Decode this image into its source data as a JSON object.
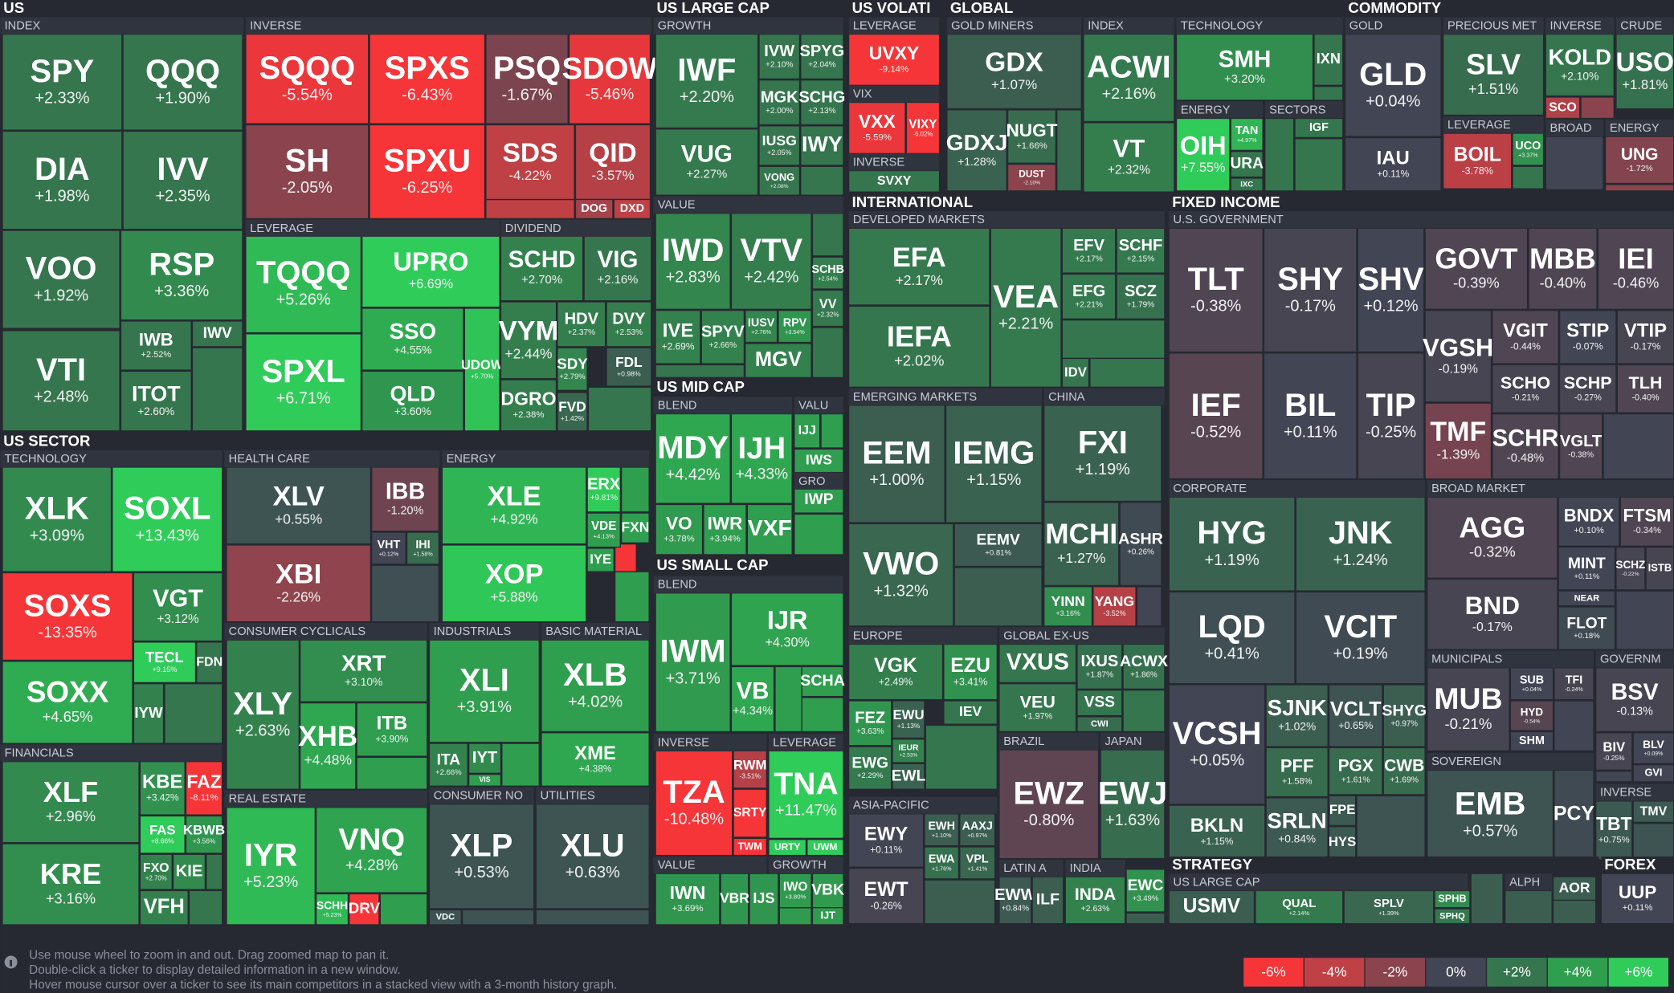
{
  "sections": [
    "US",
    "US LARGE CAP",
    "US VOLATI",
    "GLOBAL",
    "COMMODITY",
    "US SECTOR",
    "US MID CAP",
    "US SMALL CAP",
    "INTERNATIONAL",
    "FIXED INCOME",
    "STRATEGY",
    "FOREX"
  ],
  "groups": [
    "INDEX",
    "INVERSE",
    "LEVERAGE",
    "DIVIDEND",
    "GROWTH",
    "VALUE",
    "BLEND",
    "VALU",
    "GRO",
    "BLEND",
    "INVERSE",
    "LEVERAGE",
    "VALUE",
    "GROWTH",
    "LEVERAGE",
    "VIX",
    "INVERSE",
    "GOLD MINERS",
    "INDEX",
    "TECHNOLOGY",
    "ENERGY",
    "SECTORS",
    "GOLD",
    "PRECIOUS MET",
    "LEVERAGE",
    "INVERSE",
    "BROAD",
    "CRUDE",
    "ENERGY",
    "DEVELOPED MARKETS",
    "EMERGING MARKETS",
    "CHINA",
    "EUROPE",
    "GLOBAL EX-US",
    "BRAZIL",
    "JAPAN",
    "ASIA-PACIFIC",
    "LATIN A",
    "INDIA",
    "U.S. GOVERNMENT",
    "CORPORATE",
    "BROAD MARKET",
    "MUNICIPALS",
    "GOVERNM",
    "SOVEREIGN",
    "INVERSE",
    "US LARGE CAP",
    "ALPH",
    "TECHNOLOGY",
    "FINANCIALS",
    "HEALTH CARE",
    "ENERGY",
    "CONSUMER CYCLICALS",
    "REAL ESTATE",
    "INDUSTRIALS",
    "BASIC MATERIAL",
    "CONSUMER NO",
    "UTILITIES"
  ],
  "tiles": [
    {
      "ticker": "SPY",
      "change": "+2.33%"
    },
    {
      "ticker": "QQQ",
      "change": "+1.90%"
    },
    {
      "ticker": "DIA",
      "change": "+1.98%"
    },
    {
      "ticker": "IVV",
      "change": "+2.35%"
    },
    {
      "ticker": "VOO",
      "change": "+1.92%"
    },
    {
      "ticker": "RSP",
      "change": "+3.36%"
    },
    {
      "ticker": "VTI",
      "change": "+2.48%"
    },
    {
      "ticker": "IWB",
      "change": "+2.52%"
    },
    {
      "ticker": "IWV"
    },
    {
      "ticker": "ITOT",
      "change": "+2.60%"
    },
    {
      "ticker": "SQQQ",
      "change": "-5.54%"
    },
    {
      "ticker": "SPXS",
      "change": "-6.43%"
    },
    {
      "ticker": "PSQ",
      "change": "-1.67%"
    },
    {
      "ticker": "SDOW",
      "change": "-5.46%"
    },
    {
      "ticker": "SH",
      "change": "-2.05%"
    },
    {
      "ticker": "SPXU",
      "change": "-6.25%"
    },
    {
      "ticker": "SDS",
      "change": "-4.22%"
    },
    {
      "ticker": "QID",
      "change": "-3.57%"
    },
    {
      "ticker": "DOG"
    },
    {
      "ticker": "DXD"
    },
    {
      "ticker": "TQQQ",
      "change": "+5.26%"
    },
    {
      "ticker": "UPRO",
      "change": "+6.69%"
    },
    {
      "ticker": "SPXL",
      "change": "+6.71%"
    },
    {
      "ticker": "SSO",
      "change": "+4.55%"
    },
    {
      "ticker": "QLD",
      "change": "+3.60%"
    },
    {
      "ticker": "UDOW",
      "change": "+5.70%"
    },
    {
      "ticker": "SCHD",
      "change": "+2.70%"
    },
    {
      "ticker": "VIG",
      "change": "+2.16%"
    },
    {
      "ticker": "VYM",
      "change": "+2.44%"
    },
    {
      "ticker": "HDV",
      "change": "+2.37%"
    },
    {
      "ticker": "DVY",
      "change": "+2.53%"
    },
    {
      "ticker": "SDY",
      "change": "+2.79%"
    },
    {
      "ticker": "FDL",
      "change": "+0.98%"
    },
    {
      "ticker": "DGRO",
      "change": "+2.38%"
    },
    {
      "ticker": "FVD",
      "change": "+1.42%"
    },
    {
      "ticker": "IWF",
      "change": "+2.20%"
    },
    {
      "ticker": "IVW",
      "change": "+2.10%"
    },
    {
      "ticker": "SPYG",
      "change": "+2.04%"
    },
    {
      "ticker": "MGK",
      "change": "+2.00%"
    },
    {
      "ticker": "SCHG",
      "change": "+2.13%"
    },
    {
      "ticker": "VUG",
      "change": "+2.27%"
    },
    {
      "ticker": "IUSG",
      "change": "+2.05%"
    },
    {
      "ticker": "IWY"
    },
    {
      "ticker": "VONG",
      "change": "+2.08%"
    },
    {
      "ticker": "IWD",
      "change": "+2.83%"
    },
    {
      "ticker": "VTV",
      "change": "+2.42%"
    },
    {
      "ticker": "SCHB",
      "change": "+2.54%"
    },
    {
      "ticker": "VV",
      "change": "+2.32%"
    },
    {
      "ticker": "IVE",
      "change": "+2.69%"
    },
    {
      "ticker": "SPYV",
      "change": "+2.66%"
    },
    {
      "ticker": "IUSV",
      "change": "+2.76%"
    },
    {
      "ticker": "RPV",
      "change": "+3.54%"
    },
    {
      "ticker": "MGV"
    },
    {
      "ticker": "MDY",
      "change": "+4.42%"
    },
    {
      "ticker": "IJH",
      "change": "+4.33%"
    },
    {
      "ticker": "IJJ"
    },
    {
      "ticker": "IWS"
    },
    {
      "ticker": "IWP"
    },
    {
      "ticker": "VO",
      "change": "+3.78%"
    },
    {
      "ticker": "IWR",
      "change": "+3.94%"
    },
    {
      "ticker": "VXF"
    },
    {
      "ticker": "IWM",
      "change": "+3.71%"
    },
    {
      "ticker": "IJR",
      "change": "+4.30%"
    },
    {
      "ticker": "SCHA"
    },
    {
      "ticker": "VB",
      "change": "+4.34%"
    },
    {
      "ticker": "TZA",
      "change": "-10.48%"
    },
    {
      "ticker": "RWM",
      "change": "-3.51%"
    },
    {
      "ticker": "SRTY"
    },
    {
      "ticker": "TWM"
    },
    {
      "ticker": "TNA",
      "change": "+11.47%"
    },
    {
      "ticker": "URTY"
    },
    {
      "ticker": "UWM"
    },
    {
      "ticker": "IWN",
      "change": "+3.69%"
    },
    {
      "ticker": "VBR"
    },
    {
      "ticker": "IJS"
    },
    {
      "ticker": "IWO",
      "change": "+3.80%"
    },
    {
      "ticker": "VBK"
    },
    {
      "ticker": "IJT"
    },
    {
      "ticker": "UVXY",
      "change": "-9.14%"
    },
    {
      "ticker": "VXX",
      "change": "-5.59%"
    },
    {
      "ticker": "VIXY",
      "change": "-6.02%"
    },
    {
      "ticker": "SVXY"
    },
    {
      "ticker": "GDX",
      "change": "+1.07%"
    },
    {
      "ticker": "GDXJ",
      "change": "+1.28%"
    },
    {
      "ticker": "NUGT",
      "change": "+1.66%"
    },
    {
      "ticker": "DUST",
      "change": "-2.10%"
    },
    {
      "ticker": "ACWI",
      "change": "+2.16%"
    },
    {
      "ticker": "VT",
      "change": "+2.32%"
    },
    {
      "ticker": "SMH",
      "change": "+3.20%"
    },
    {
      "ticker": "IXN"
    },
    {
      "ticker": "OIH",
      "change": "+7.55%"
    },
    {
      "ticker": "TAN",
      "change": "+4.97%"
    },
    {
      "ticker": "URA"
    },
    {
      "ticker": "IXC"
    },
    {
      "ticker": "IGF"
    },
    {
      "ticker": "GLD",
      "change": "+0.04%"
    },
    {
      "ticker": "IAU",
      "change": "+0.11%"
    },
    {
      "ticker": "SLV",
      "change": "+1.51%"
    },
    {
      "ticker": "BOIL",
      "change": "-3.78%"
    },
    {
      "ticker": "UCO",
      "change": "+3.37%"
    },
    {
      "ticker": "KOLD",
      "change": "+2.10%"
    },
    {
      "ticker": "SCO"
    },
    {
      "ticker": "USO",
      "change": "+1.81%"
    },
    {
      "ticker": "UNG",
      "change": "-1.72%"
    },
    {
      "ticker": "EFA",
      "change": "+2.17%"
    },
    {
      "ticker": "IEFA",
      "change": "+2.02%"
    },
    {
      "ticker": "VEA",
      "change": "+2.21%"
    },
    {
      "ticker": "EFV",
      "change": "+2.17%"
    },
    {
      "ticker": "SCHF",
      "change": "+2.15%"
    },
    {
      "ticker": "EFG",
      "change": "+2.21%"
    },
    {
      "ticker": "SCZ",
      "change": "+1.79%"
    },
    {
      "ticker": "IDV"
    },
    {
      "ticker": "EEM",
      "change": "+1.00%"
    },
    {
      "ticker": "IEMG",
      "change": "+1.15%"
    },
    {
      "ticker": "VWO",
      "change": "+1.32%"
    },
    {
      "ticker": "EEMV",
      "change": "+0.81%"
    },
    {
      "ticker": "FXI",
      "change": "+1.19%"
    },
    {
      "ticker": "MCHI",
      "change": "+1.27%"
    },
    {
      "ticker": "ASHR",
      "change": "+0.26%"
    },
    {
      "ticker": "YINN",
      "change": "+3.16%"
    },
    {
      "ticker": "YANG",
      "change": "-3.52%"
    },
    {
      "ticker": "VGK",
      "change": "+2.49%"
    },
    {
      "ticker": "EZU",
      "change": "+3.41%"
    },
    {
      "ticker": "FEZ",
      "change": "+3.63%"
    },
    {
      "ticker": "EWU",
      "change": "+1.13%"
    },
    {
      "ticker": "IEV"
    },
    {
      "ticker": "IEUR",
      "change": "+2.53%"
    },
    {
      "ticker": "EWG",
      "change": "+2.29%"
    },
    {
      "ticker": "EWL"
    },
    {
      "ticker": "VXUS"
    },
    {
      "ticker": "IXUS",
      "change": "+1.87%"
    },
    {
      "ticker": "ACWX",
      "change": "+1.86%"
    },
    {
      "ticker": "VEU",
      "change": "+1.97%"
    },
    {
      "ticker": "VSS"
    },
    {
      "ticker": "CWI"
    },
    {
      "ticker": "EWZ",
      "change": "-0.80%"
    },
    {
      "ticker": "EWJ",
      "change": "+1.63%"
    },
    {
      "ticker": "EWY",
      "change": "+0.11%"
    },
    {
      "ticker": "EWH",
      "change": "+1.10%"
    },
    {
      "ticker": "AAXJ",
      "change": "+0.97%"
    },
    {
      "ticker": "EWA",
      "change": "+1.76%"
    },
    {
      "ticker": "VPL",
      "change": "+1.41%"
    },
    {
      "ticker": "EWT",
      "change": "-0.26%"
    },
    {
      "ticker": "EWW",
      "change": "+0.84%"
    },
    {
      "ticker": "ILF"
    },
    {
      "ticker": "INDA",
      "change": "+2.63%"
    },
    {
      "ticker": "EWC",
      "change": "+3.49%"
    },
    {
      "ticker": "TLT",
      "change": "-0.38%"
    },
    {
      "ticker": "SHY",
      "change": "-0.17%"
    },
    {
      "ticker": "SHV",
      "change": "+0.12%"
    },
    {
      "ticker": "GOVT",
      "change": "-0.39%"
    },
    {
      "ticker": "MBB",
      "change": "-0.40%"
    },
    {
      "ticker": "IEI",
      "change": "-0.46%"
    },
    {
      "ticker": "VGSH",
      "change": "-0.19%"
    },
    {
      "ticker": "VGIT",
      "change": "-0.44%"
    },
    {
      "ticker": "STIP",
      "change": "-0.07%"
    },
    {
      "ticker": "VTIP",
      "change": "-0.17%"
    },
    {
      "ticker": "SCHO",
      "change": "-0.21%"
    },
    {
      "ticker": "SCHP",
      "change": "-0.27%"
    },
    {
      "ticker": "TLH",
      "change": "-0.40%"
    },
    {
      "ticker": "IEF",
      "change": "-0.52%"
    },
    {
      "ticker": "BIL",
      "change": "+0.11%"
    },
    {
      "ticker": "TIP",
      "change": "-0.25%"
    },
    {
      "ticker": "TMF",
      "change": "-1.39%"
    },
    {
      "ticker": "SCHR",
      "change": "-0.48%"
    },
    {
      "ticker": "VGLT",
      "change": "-0.38%"
    },
    {
      "ticker": "HYG",
      "change": "+1.19%"
    },
    {
      "ticker": "JNK",
      "change": "+1.24%"
    },
    {
      "ticker": "LQD",
      "change": "+0.41%"
    },
    {
      "ticker": "VCIT",
      "change": "+0.19%"
    },
    {
      "ticker": "VCSH",
      "change": "+0.05%"
    },
    {
      "ticker": "SJNK",
      "change": "+1.02%"
    },
    {
      "ticker": "VCLT",
      "change": "+0.65%"
    },
    {
      "ticker": "SHYG",
      "change": "+0.97%"
    },
    {
      "ticker": "PFF",
      "change": "+1.58%"
    },
    {
      "ticker": "PGX",
      "change": "+1.61%"
    },
    {
      "ticker": "CWB",
      "change": "+1.69%"
    },
    {
      "ticker": "FPE"
    },
    {
      "ticker": "BKLN",
      "change": "+1.15%"
    },
    {
      "ticker": "SRLN",
      "change": "+0.84%"
    },
    {
      "ticker": "HYS"
    },
    {
      "ticker": "AGG",
      "change": "-0.32%"
    },
    {
      "ticker": "BND",
      "change": "-0.17%"
    },
    {
      "ticker": "BNDX",
      "change": "+0.10%"
    },
    {
      "ticker": "FTSM",
      "change": "-0.34%"
    },
    {
      "ticker": "MINT",
      "change": "+0.11%"
    },
    {
      "ticker": "SCHZ",
      "change": "-0.22%"
    },
    {
      "ticker": "ISTB"
    },
    {
      "ticker": "NEAR"
    },
    {
      "ticker": "FLOT",
      "change": "+0.18%"
    },
    {
      "ticker": "MUB",
      "change": "-0.21%"
    },
    {
      "ticker": "SUB",
      "change": "+0.04%"
    },
    {
      "ticker": "TFI",
      "change": "-0.24%"
    },
    {
      "ticker": "HYD",
      "change": "-0.54%"
    },
    {
      "ticker": "SHM"
    },
    {
      "ticker": "BSV",
      "change": "-0.13%"
    },
    {
      "ticker": "BIV",
      "change": "-0.25%"
    },
    {
      "ticker": "BLV",
      "change": "+0.09%"
    },
    {
      "ticker": "GVI"
    },
    {
      "ticker": "EMB",
      "change": "+0.57%"
    },
    {
      "ticker": "PCY"
    },
    {
      "ticker": "TBT",
      "change": "+0.75%"
    },
    {
      "ticker": "TMV"
    },
    {
      "ticker": "USMV"
    },
    {
      "ticker": "QUAL",
      "change": "+2.14%"
    },
    {
      "ticker": "SPLV",
      "change": "+1.39%"
    },
    {
      "ticker": "SPHB"
    },
    {
      "ticker": "SPHQ"
    },
    {
      "ticker": "AOR"
    },
    {
      "ticker": "UUP",
      "change": "+0.11%"
    },
    {
      "ticker": "XLK",
      "change": "+3.09%"
    },
    {
      "ticker": "SOXL",
      "change": "+13.43%"
    },
    {
      "ticker": "SOXS",
      "change": "-13.35%"
    },
    {
      "ticker": "VGT",
      "change": "+3.12%"
    },
    {
      "ticker": "TECL",
      "change": "+9.15%"
    },
    {
      "ticker": "FDN"
    },
    {
      "ticker": "IYW"
    },
    {
      "ticker": "SOXX",
      "change": "+4.65%"
    },
    {
      "ticker": "XLF",
      "change": "+2.96%"
    },
    {
      "ticker": "KRE",
      "change": "+3.16%"
    },
    {
      "ticker": "KBE",
      "change": "+3.42%"
    },
    {
      "ticker": "FAZ",
      "change": "-8.11%"
    },
    {
      "ticker": "FAS",
      "change": "+8.66%"
    },
    {
      "ticker": "KBWB",
      "change": "+3.56%"
    },
    {
      "ticker": "FXO",
      "change": "+2.70%"
    },
    {
      "ticker": "KIE"
    },
    {
      "ticker": "VFH"
    },
    {
      "ticker": "XLV",
      "change": "+0.55%"
    },
    {
      "ticker": "IBB",
      "change": "-1.20%"
    },
    {
      "ticker": "VHT",
      "change": "+0.12%"
    },
    {
      "ticker": "IHI",
      "change": "+1.58%"
    },
    {
      "ticker": "XBI",
      "change": "-2.26%"
    },
    {
      "ticker": "XLE",
      "change": "+4.92%"
    },
    {
      "ticker": "ERX",
      "change": "+9.81%"
    },
    {
      "ticker": "VDE",
      "change": "+4.13%"
    },
    {
      "ticker": "FXN"
    },
    {
      "ticker": "IYE"
    },
    {
      "ticker": "XOP",
      "change": "+5.88%"
    },
    {
      "ticker": "XLY",
      "change": "+2.63%"
    },
    {
      "ticker": "XRT",
      "change": "+3.10%"
    },
    {
      "ticker": "XHB",
      "change": "+4.48%"
    },
    {
      "ticker": "ITB",
      "change": "+3.90%"
    },
    {
      "ticker": "IYR",
      "change": "+5.23%"
    },
    {
      "ticker": "VNQ",
      "change": "+4.28%"
    },
    {
      "ticker": "SCHH",
      "change": "+5.23%"
    },
    {
      "ticker": "DRV"
    },
    {
      "ticker": "XLI",
      "change": "+3.91%"
    },
    {
      "ticker": "ITA",
      "change": "+2.66%"
    },
    {
      "ticker": "IYT"
    },
    {
      "ticker": "VIS"
    },
    {
      "ticker": "XLB",
      "change": "+4.02%"
    },
    {
      "ticker": "XME",
      "change": "+4.38%"
    },
    {
      "ticker": "XLP",
      "change": "+0.53%"
    },
    {
      "ticker": "VDC"
    },
    {
      "ticker": "XLU",
      "change": "+0.63%"
    }
  ],
  "footer": {
    "lines": [
      "Use mouse wheel to zoom in and out. Drag zoomed map to pan it.",
      "Double-click a ticker to display detailed information in a new window.",
      "Hover mouse cursor over a ticker to see its main competitors in a stacked view with a 3-month history graph."
    ]
  },
  "legend": [
    "-6%",
    "-4%",
    "-2%",
    "0%",
    "+2%",
    "+4%",
    "+6%"
  ]
}
